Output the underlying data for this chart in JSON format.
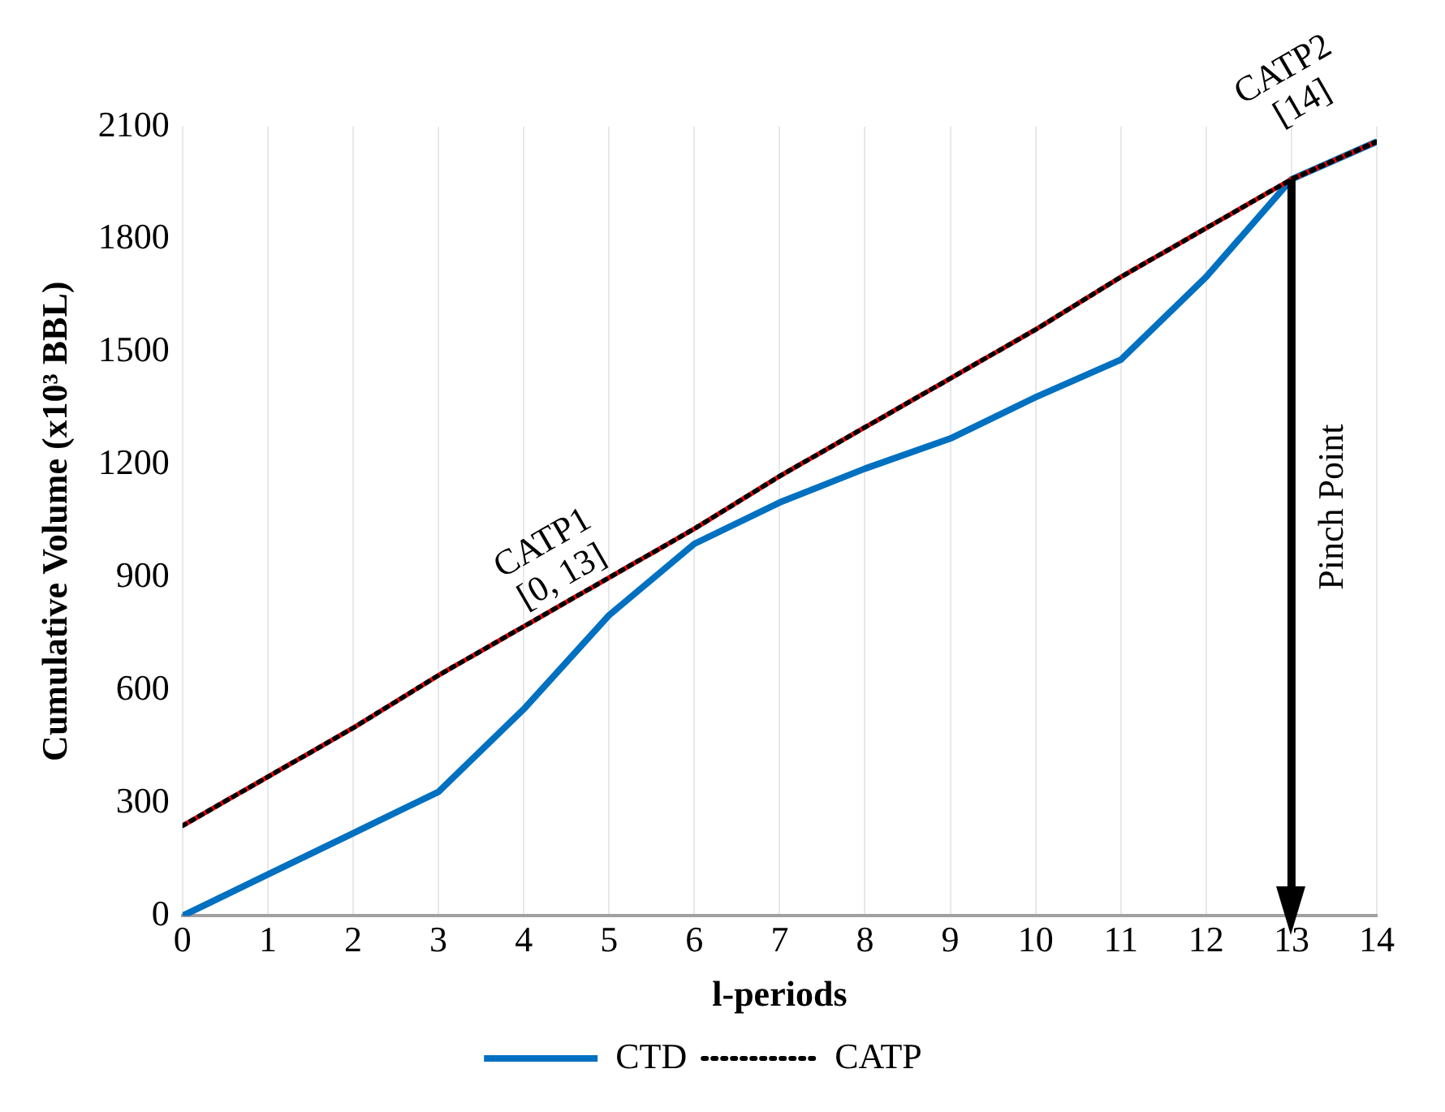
{
  "chart_data": {
    "type": "line",
    "xlabel": "l-periods",
    "ylabel": "Cumulative Volume (x10³ BBL)",
    "x": [
      0,
      1,
      2,
      3,
      4,
      5,
      6,
      7,
      8,
      9,
      10,
      11,
      12,
      13,
      14
    ],
    "series": [
      {
        "name": "CTD",
        "color": "#0070c0",
        "line_style": "solid",
        "values": [
          0,
          110,
          220,
          330,
          550,
          800,
          990,
          1100,
          1190,
          1270,
          1380,
          1480,
          1700,
          1960,
          2060
        ]
      },
      {
        "color": "#ff0000",
        "line_style": "dotted",
        "values": [
          240,
          370,
          500,
          640,
          770,
          900,
          1030,
          1170,
          1300,
          1430,
          1560,
          1700,
          1830,
          1960,
          2060
        ]
      },
      {
        "name": "CATP",
        "color": "#000000",
        "line_style": "dotted",
        "values": [
          240,
          370,
          500,
          640,
          770,
          900,
          1030,
          1170,
          1300,
          1430,
          1560,
          1700,
          1830,
          1960,
          2060
        ]
      }
    ],
    "xlim": [
      0,
      14
    ],
    "xticks": [
      0,
      1,
      2,
      3,
      4,
      5,
      6,
      7,
      8,
      9,
      10,
      11,
      12,
      13,
      14
    ],
    "ylim": [
      0,
      2100
    ],
    "yticks": [
      0,
      300,
      600,
      900,
      1200,
      1500,
      1800,
      2100
    ],
    "grid": "x",
    "legend": "bottom",
    "marker": "none",
    "ref_lines": [
      {
        "axis": "x",
        "value": 13,
        "label": "Pinch Point",
        "color": "#000000"
      }
    ],
    "annotations": [
      "CATP1\n[0, 13]",
      "CATP2\n[14]"
    ]
  }
}
